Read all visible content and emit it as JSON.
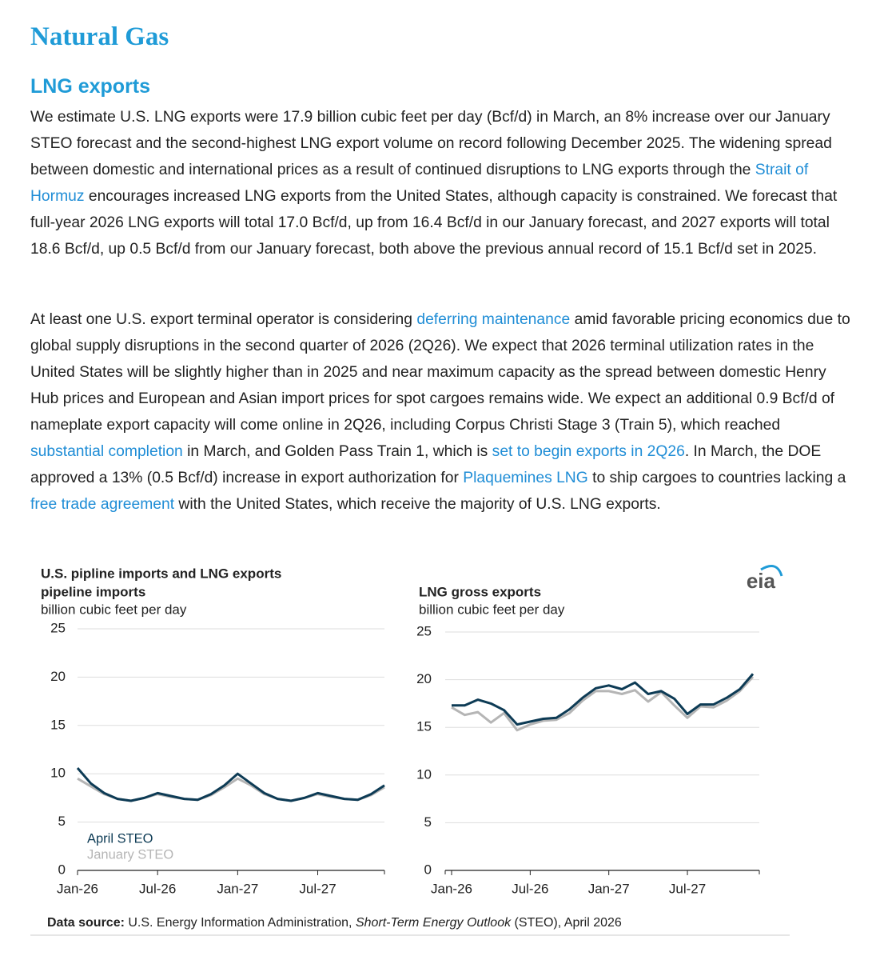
{
  "title": "Natural Gas",
  "heading": "LNG exports",
  "paragraphs": [
    {
      "segments": [
        {
          "text": "We estimate U.S. LNG exports were 17.9 billion cubic feet per day (Bcf/d) in March, an 8% increase over our January STEO forecast and the second-highest LNG export volume on record following December 2025. The widening spread between domestic and international prices as a result of continued disruptions to LNG exports through the "
        },
        {
          "text": "Strait of Hormuz",
          "link": true
        },
        {
          "text": " encourages increased LNG exports from the United States, although capacity is constrained. We forecast that full-year 2026 LNG exports will total 17.0 Bcf/d, up from 16.4 Bcf/d in our January forecast, and 2027 exports will total 18.6 Bcf/d, up 0.5 Bcf/d from our January forecast, both above the previous annual record of 15.1 Bcf/d set in 2025."
        }
      ]
    },
    {
      "segments": [
        {
          "text": "At least one U.S. export terminal operator is considering "
        },
        {
          "text": "deferring maintenance",
          "link": true
        },
        {
          "text": " amid favorable pricing economics due to global supply disruptions in the second quarter of 2026 (2Q26). We expect that 2026 terminal utilization rates in the United States will be slightly higher than in 2025 and near maximum capacity as the spread between domestic Henry Hub prices and European and Asian import prices for spot cargoes remains wide. We expect an additional 0.9 Bcf/d of nameplate export capacity will come online in 2Q26, including Corpus Christi Stage 3 (Train 5), which reached "
        },
        {
          "text": "substantial completion",
          "link": true
        },
        {
          "text": " in March, and Golden Pass Train 1, which is "
        },
        {
          "text": "set to begin exports in 2Q26",
          "link": true
        },
        {
          "text": ". In March, the DOE approved a 13% (0.5 Bcf/d) increase in export authorization for "
        },
        {
          "text": "Plaquemines LNG",
          "link": true
        },
        {
          "text": " to ship cargoes to countries lacking a "
        },
        {
          "text": "free trade agreement",
          "link": true
        },
        {
          "text": " with the United States, which receive the majority of U.S. LNG exports."
        }
      ]
    }
  ],
  "figure": {
    "title": "U.S. pipline imports and LNG exports",
    "logo": "eia",
    "source": [
      {
        "text": "Data source:",
        "bold": true
      },
      {
        "text": " U.S. Energy Information Administration, "
      },
      {
        "text": "Short-Term Energy Outlook",
        "italic": true
      },
      {
        "text": " (STEO), April 2026"
      }
    ]
  },
  "chart_data": [
    {
      "type": "line",
      "title": "pipeline imports",
      "y_label": "billion cubic feet per day",
      "x": [
        "2026-01",
        "2026-02",
        "2026-03",
        "2026-04",
        "2026-05",
        "2026-06",
        "2026-07",
        "2026-08",
        "2026-09",
        "2026-10",
        "2026-11",
        "2026-12",
        "2027-01",
        "2027-02",
        "2027-03",
        "2027-04",
        "2027-05",
        "2027-06",
        "2027-07",
        "2027-08",
        "2027-09",
        "2027-10",
        "2027-11",
        "2027-12"
      ],
      "xticks": [
        {
          "value": "2026-01",
          "label": "Jan-26"
        },
        {
          "value": "2026-07",
          "label": "Jul-26"
        },
        {
          "value": "2027-01",
          "label": "Jan-27"
        },
        {
          "value": "2027-07",
          "label": "Jul-27"
        }
      ],
      "ylim": [
        0,
        25
      ],
      "yticks": [
        0,
        5,
        10,
        15,
        20,
        25
      ],
      "grid": true,
      "legend": "lower left",
      "series": [
        {
          "name": "January STEO",
          "color": "#b5b5b5",
          "values": [
            9.5,
            8.7,
            7.9,
            7.4,
            7.2,
            7.5,
            7.9,
            7.6,
            7.4,
            7.3,
            7.8,
            8.6,
            9.5,
            8.8,
            7.9,
            7.4,
            7.2,
            7.5,
            7.9,
            7.6,
            7.4,
            7.3,
            7.8,
            8.6
          ]
        },
        {
          "name": "April STEO",
          "color": "#0d3b55",
          "values": [
            10.6,
            9.0,
            8.0,
            7.4,
            7.2,
            7.5,
            8.0,
            7.7,
            7.4,
            7.3,
            7.9,
            8.8,
            10.0,
            9.0,
            8.0,
            7.4,
            7.2,
            7.5,
            8.0,
            7.7,
            7.4,
            7.3,
            7.9,
            8.8
          ]
        }
      ]
    },
    {
      "type": "line",
      "title": "LNG gross exports",
      "y_label": "billion cubic feet per day",
      "x": [
        "2026-01",
        "2026-02",
        "2026-03",
        "2026-04",
        "2026-05",
        "2026-06",
        "2026-07",
        "2026-08",
        "2026-09",
        "2026-10",
        "2026-11",
        "2026-12",
        "2027-01",
        "2027-02",
        "2027-03",
        "2027-04",
        "2027-05",
        "2027-06",
        "2027-07",
        "2027-08",
        "2027-09",
        "2027-10",
        "2027-11",
        "2027-12"
      ],
      "xticks": [
        {
          "value": "2026-01",
          "label": "Jan-26"
        },
        {
          "value": "2026-07",
          "label": "Jul-26"
        },
        {
          "value": "2027-01",
          "label": "Jan-27"
        },
        {
          "value": "2027-07",
          "label": "Jul-27"
        }
      ],
      "ylim": [
        0,
        25
      ],
      "yticks": [
        0,
        5,
        10,
        15,
        20,
        25
      ],
      "grid": true,
      "series": [
        {
          "color": "#b5b5b5",
          "values": [
            17.1,
            16.3,
            16.6,
            15.5,
            16.5,
            14.7,
            15.3,
            15.7,
            15.8,
            16.5,
            17.8,
            18.8,
            18.8,
            18.5,
            18.9,
            17.7,
            18.7,
            17.3,
            16.0,
            17.2,
            17.1,
            17.8,
            18.8,
            20.3
          ]
        },
        {
          "color": "#0d3b55",
          "values": [
            17.3,
            17.3,
            17.9,
            17.5,
            16.8,
            15.3,
            15.6,
            15.9,
            16.0,
            16.9,
            18.1,
            19.1,
            19.4,
            19.0,
            19.7,
            18.5,
            18.8,
            18.0,
            16.4,
            17.4,
            17.4,
            18.1,
            19.0,
            20.6
          ]
        }
      ]
    }
  ]
}
